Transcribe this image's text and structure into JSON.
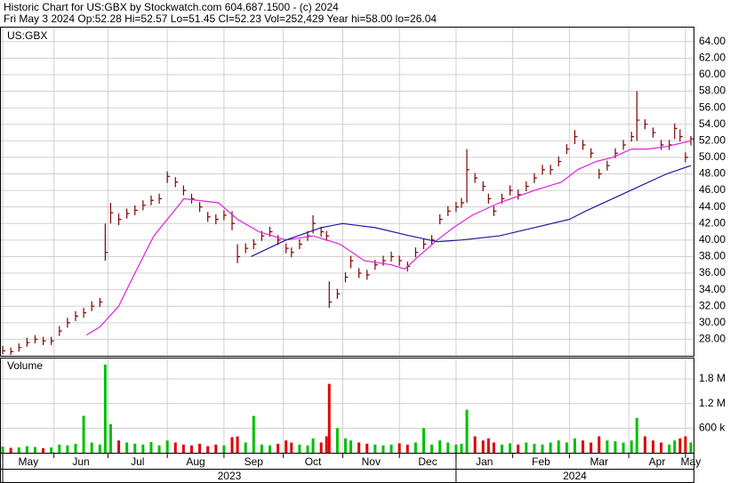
{
  "chart_data": {
    "type": "ohlc",
    "title": "Historic Chart for US:GBX by Stockwatch.com 604.687.1500 - (c) 2024",
    "subtitle": "Fri May  3 2024  Op:52.28  Hi=52.57  Lo=51.45  Cl=52.23  Vol=252,429  Year hi=58.00  lo=26.04",
    "symbol_label": "US:GBX",
    "volume_label": "Volume",
    "color": "#800000",
    "volume_up_color": "#00c000",
    "volume_down_color": "#e00000",
    "grid": true,
    "xlim": [
      -1,
      256
    ],
    "ylim": [
      26,
      65.8
    ],
    "volume_ylim": [
      0,
      2300000
    ],
    "yticks": [
      {
        "value": 28,
        "label": "28.00"
      },
      {
        "value": 30,
        "label": "30.00"
      },
      {
        "value": 32,
        "label": "32.00"
      },
      {
        "value": 34,
        "label": "34.00"
      },
      {
        "value": 36,
        "label": "36.00"
      },
      {
        "value": 38,
        "label": "38.00"
      },
      {
        "value": 40,
        "label": "40.00"
      },
      {
        "value": 42,
        "label": "42.00"
      },
      {
        "value": 44,
        "label": "44.00"
      },
      {
        "value": 46,
        "label": "46.00"
      },
      {
        "value": 48,
        "label": "48.00"
      },
      {
        "value": 50,
        "label": "50.00"
      },
      {
        "value": 52,
        "label": "52.00"
      },
      {
        "value": 54,
        "label": "54.00"
      },
      {
        "value": 56,
        "label": "56.00"
      },
      {
        "value": 58,
        "label": "58.00"
      },
      {
        "value": 60,
        "label": "60.00"
      },
      {
        "value": 62,
        "label": "62.00"
      },
      {
        "value": 64,
        "label": "64.00"
      }
    ],
    "volume_yticks": [
      {
        "value": 600000,
        "label": "600 k"
      },
      {
        "value": 1200000,
        "label": "1.2 M"
      },
      {
        "value": 1800000,
        "label": "1.8 M"
      }
    ],
    "xticks": [
      {
        "value": 0,
        "label": "May"
      },
      {
        "value": 19,
        "label": "Jun"
      },
      {
        "value": 39,
        "label": "Jul"
      },
      {
        "value": 61,
        "label": "Aug"
      },
      {
        "value": 82,
        "label": "Sep"
      },
      {
        "value": 104,
        "label": "Oct"
      },
      {
        "value": 126,
        "label": "Nov"
      },
      {
        "value": 147,
        "label": "Dec"
      },
      {
        "value": 168,
        "label": "Jan"
      },
      {
        "value": 189,
        "label": "Feb"
      },
      {
        "value": 210,
        "label": "Mar"
      },
      {
        "value": 232,
        "label": "Apr"
      },
      {
        "value": 253,
        "label": "May"
      }
    ],
    "year_ticks": [
      {
        "value": 0,
        "label": "2023"
      },
      {
        "value": 168,
        "label": "2024"
      }
    ],
    "x": [
      0,
      3,
      6,
      9,
      12,
      15,
      18,
      21,
      24,
      27,
      30,
      33,
      36,
      38,
      40,
      43,
      46,
      49,
      52,
      55,
      58,
      61,
      64,
      67,
      70,
      73,
      76,
      79,
      82,
      85,
      87,
      90,
      93,
      96,
      99,
      102,
      105,
      107,
      110,
      113,
      115,
      118,
      120,
      121,
      124,
      127,
      129,
      132,
      135,
      138,
      141,
      144,
      147,
      150,
      153,
      156,
      159,
      162,
      165,
      168,
      170,
      172,
      175,
      178,
      180,
      182,
      185,
      188,
      191,
      194,
      197,
      200,
      203,
      206,
      209,
      212,
      215,
      218,
      221,
      224,
      227,
      230,
      233,
      235,
      238,
      241,
      244,
      247,
      249,
      251,
      253,
      255
    ],
    "high": [
      27.2,
      27.0,
      27.5,
      28.2,
      28.5,
      28.3,
      28.3,
      29.6,
      30.6,
      31.4,
      31.8,
      32.6,
      33.0,
      42.0,
      44.5,
      43.2,
      43.8,
      44.2,
      44.8,
      45.4,
      45.6,
      48.3,
      47.6,
      46.6,
      45.6,
      44.6,
      43.4,
      43.1,
      43.6,
      43.5,
      39.5,
      39.6,
      40.1,
      41.1,
      41.6,
      40.6,
      39.6,
      39.1,
      40.1,
      41.1,
      43.0,
      41.6,
      41.1,
      35.0,
      34.1,
      36.1,
      38.1,
      36.6,
      36.4,
      37.6,
      38.1,
      38.6,
      38.1,
      37.4,
      39.1,
      40.1,
      40.6,
      43.1,
      44.1,
      44.6,
      45.1,
      51.0,
      48.1,
      47.1,
      45.6,
      44.1,
      45.6,
      46.6,
      46.1,
      47.1,
      48.1,
      49.1,
      49.1,
      50.1,
      51.6,
      53.3,
      52.1,
      51.1,
      48.6,
      49.6,
      51.1,
      52.1,
      53.1,
      58.0,
      54.6,
      53.6,
      52.1,
      52.1,
      54.1,
      53.4,
      50.6,
      52.57
    ],
    "low": [
      26.2,
      26.1,
      26.5,
      27.1,
      27.5,
      27.3,
      27.3,
      28.4,
      29.4,
      30.2,
      30.6,
      31.4,
      31.9,
      37.5,
      42.0,
      41.8,
      42.6,
      43.0,
      43.6,
      44.2,
      44.4,
      46.9,
      46.4,
      45.4,
      44.4,
      43.4,
      42.2,
      41.9,
      42.4,
      41.2,
      37.2,
      38.4,
      38.9,
      39.9,
      40.4,
      39.4,
      38.4,
      37.9,
      38.9,
      39.9,
      40.8,
      40.4,
      39.9,
      31.8,
      32.9,
      34.9,
      36.6,
      35.4,
      35.2,
      36.4,
      36.9,
      37.4,
      36.9,
      36.2,
      37.9,
      38.9,
      39.4,
      41.9,
      42.9,
      43.4,
      43.9,
      44.5,
      46.9,
      45.9,
      44.4,
      42.9,
      44.4,
      45.4,
      44.9,
      45.9,
      46.9,
      47.9,
      47.9,
      48.9,
      50.4,
      51.6,
      50.9,
      49.9,
      47.4,
      48.4,
      49.9,
      50.9,
      51.9,
      52.0,
      53.4,
      52.4,
      50.9,
      50.9,
      52.2,
      51.9,
      49.4,
      51.45
    ],
    "close": [
      26.6,
      26.5,
      27.0,
      27.6,
      28.0,
      27.8,
      27.8,
      29.0,
      30.0,
      30.8,
      31.2,
      32.0,
      32.5,
      38.5,
      43.3,
      42.5,
      43.2,
      43.6,
      44.2,
      44.8,
      45.0,
      47.7,
      47.0,
      46.0,
      45.0,
      44.0,
      42.8,
      42.5,
      43.0,
      42.0,
      38.0,
      39.0,
      39.5,
      40.5,
      41.0,
      40.0,
      39.0,
      38.5,
      39.5,
      40.5,
      42.0,
      41.0,
      40.5,
      32.5,
      33.5,
      35.5,
      37.5,
      36.0,
      35.8,
      37.0,
      37.5,
      38.0,
      37.5,
      36.8,
      38.5,
      39.5,
      40.0,
      42.5,
      43.5,
      44.0,
      44.5,
      48.5,
      47.5,
      46.5,
      45.0,
      43.5,
      45.0,
      46.0,
      45.5,
      46.5,
      47.5,
      48.5,
      48.5,
      49.5,
      51.0,
      52.5,
      51.5,
      50.5,
      48.0,
      49.0,
      50.5,
      51.5,
      52.5,
      54.5,
      54.0,
      53.0,
      51.5,
      51.5,
      53.5,
      52.5,
      50.0,
      52.23
    ],
    "volume": [
      150000,
      120000,
      130000,
      160000,
      140000,
      110000,
      130000,
      200000,
      180000,
      220000,
      900000,
      250000,
      200000,
      2150000,
      700000,
      300000,
      250000,
      220000,
      200000,
      260000,
      180000,
      300000,
      250000,
      200000,
      180000,
      220000,
      160000,
      200000,
      180000,
      380000,
      400000,
      250000,
      900000,
      200000,
      180000,
      220000,
      300000,
      250000,
      200000,
      180000,
      350000,
      250000,
      400000,
      1680000,
      600000,
      350000,
      300000,
      250000,
      220000,
      200000,
      180000,
      200000,
      230000,
      200000,
      250000,
      600000,
      200000,
      300000,
      250000,
      200000,
      220000,
      1050000,
      400000,
      300000,
      350000,
      250000,
      200000,
      230000,
      200000,
      250000,
      220000,
      200000,
      250000,
      300000,
      250000,
      350000,
      300000,
      250000,
      400000,
      300000,
      280000,
      250000,
      300000,
      850000,
      400000,
      300000,
      250000,
      200000,
      300000,
      350000,
      400000,
      252429
    ],
    "moving_averages": [
      {
        "color": "#e020e0",
        "x": [
          31,
          36,
          43,
          49,
          56,
          66,
          67,
          80,
          87,
          95,
          105,
          115,
          125,
          134,
          144,
          149,
          154,
          161,
          167,
          174,
          184,
          197,
          207,
          213,
          220,
          226,
          233,
          239,
          246,
          255
        ],
        "values": [
          28.5,
          29.5,
          32,
          36,
          40.5,
          44.5,
          45,
          44.5,
          42.5,
          41,
          40,
          40.5,
          39.5,
          37.5,
          37,
          36.5,
          38,
          40,
          41.5,
          43,
          44.5,
          46,
          47,
          48.5,
          49.5,
          50,
          51,
          51,
          51.3,
          52
        ]
      },
      {
        "color": "#1a1aa0",
        "x": [
          92,
          105,
          118,
          126,
          138,
          151,
          161,
          170,
          184,
          197,
          210,
          216,
          226,
          236,
          246,
          255
        ],
        "values": [
          38,
          40,
          41.5,
          42,
          41.5,
          40.5,
          39.8,
          40,
          40.5,
          41.5,
          42.5,
          43.5,
          45,
          46.5,
          48,
          49
        ]
      }
    ]
  }
}
